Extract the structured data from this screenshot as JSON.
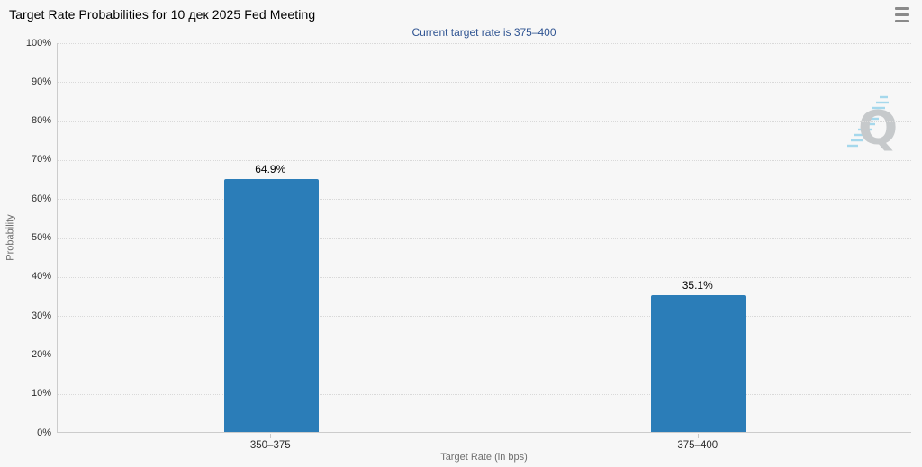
{
  "header": {
    "title": "Target Rate Probabilities for 10 дек 2025 Fed Meeting",
    "subtitle": "Current target rate is 375–400",
    "menu_icon": "hamburger-menu-icon",
    "watermark_letter": "Q"
  },
  "colors": {
    "background": "#f7f7f7",
    "bar": "#2b7db8",
    "title": "#000000",
    "subtitle": "#2f5492",
    "tick_label": "#2e2e2e",
    "axis_title": "#6e6e6e",
    "gridline": "#d9d9d9",
    "axis_line": "#cccccc",
    "menu_icon": "#8a8a8a",
    "watermark_letter": "#c6c9cb",
    "watermark_dashes": "#a5d8ec"
  },
  "chart_data": {
    "type": "bar",
    "title": "Target Rate Probabilities for 10 дек 2025 Fed Meeting",
    "subtitle": "Current target rate is 375–400",
    "categories": [
      "350–375",
      "375–400"
    ],
    "values": [
      64.9,
      35.1
    ],
    "value_labels": [
      "64.9%",
      "35.1%"
    ],
    "xlabel": "Target Rate (in bps)",
    "ylabel": "Probability",
    "ylim": [
      0,
      100
    ],
    "ytick_step": 10,
    "ytick_suffix": "%",
    "grid": true,
    "legend": false
  }
}
